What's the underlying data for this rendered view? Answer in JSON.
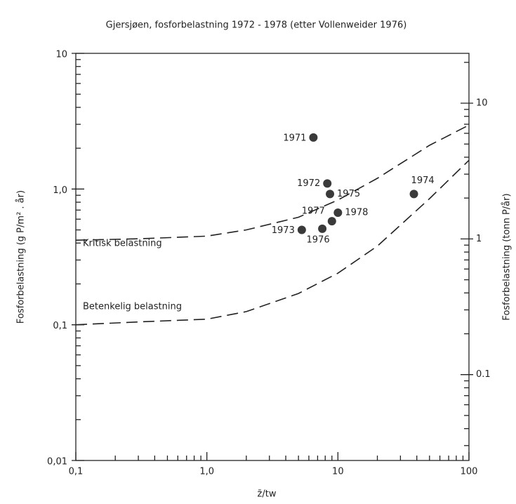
{
  "chart_data": {
    "type": "scatter",
    "title": "Gjersjøen, fosforbelastning 1972 - 1978 (etter Vollenweider 1976)",
    "xlabel": "z̄/tw",
    "ylabel": "Fosforbelastning (g P/m² . år)",
    "y2label": "Fosforbelastning (tonn P/år)",
    "log_x": true,
    "log_y": true,
    "xlim": [
      0.1,
      100
    ],
    "ylim": [
      0.01,
      10
    ],
    "y2lim": [
      0.0233,
      23.3
    ],
    "xticks": [
      {
        "value": 0.1,
        "label": "0,1"
      },
      {
        "value": 1,
        "label": "1,0"
      },
      10,
      100
    ],
    "yticks": [
      {
        "value": 0.01,
        "label": "0,01"
      },
      {
        "value": 0.1,
        "label": "0,1"
      },
      {
        "value": 1,
        "label": "1,0"
      },
      10
    ],
    "y2ticks": [
      0.1,
      1,
      10
    ],
    "points": {
      "color": "#3a3a3a",
      "labels": [
        "1971",
        "1972",
        "1975",
        "1974",
        "1978",
        "1977",
        "1976",
        "1973"
      ],
      "x": [
        6.5,
        8.3,
        8.7,
        38,
        10,
        9,
        7.6,
        5.3
      ],
      "values": [
        2.4,
        1.1,
        0.92,
        0.92,
        0.67,
        0.58,
        0.51,
        0.5
      ]
    },
    "series": [
      {
        "name": "Kritisk belastning",
        "color": "#222222",
        "x": [
          0.1,
          0.3,
          1,
          2,
          5,
          10,
          20,
          50,
          100
        ],
        "values": [
          0.42,
          0.43,
          0.45,
          0.5,
          0.62,
          0.83,
          1.2,
          2.1,
          2.96
        ]
      },
      {
        "name": "Betenkelig belastning",
        "color": "#222222",
        "x": [
          0.1,
          0.3,
          1,
          2,
          5,
          10,
          20,
          50,
          100
        ],
        "values": [
          0.1,
          0.105,
          0.11,
          0.125,
          0.17,
          0.24,
          0.38,
          0.85,
          1.63
        ]
      }
    ]
  }
}
